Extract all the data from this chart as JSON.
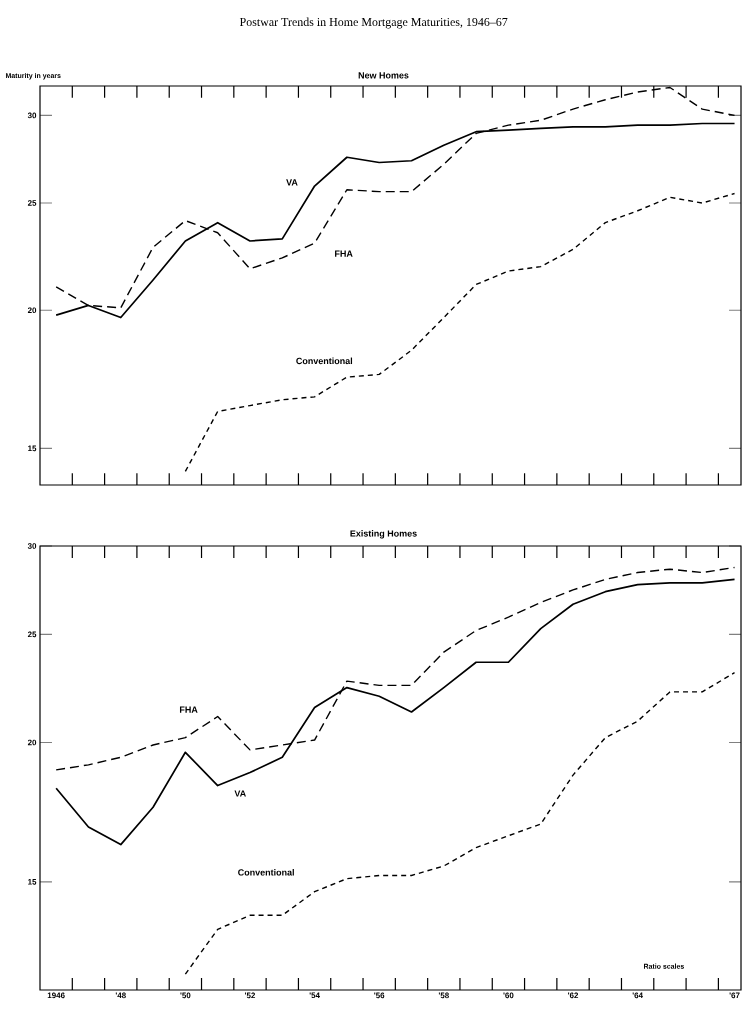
{
  "chart_data": [
    {
      "type": "line",
      "title": "Postwar Trends in Home Mortgage Maturities, 1946–67",
      "subtitle": "New Homes",
      "ylabel": "Maturity in years",
      "log": true,
      "tick_labels": "y",
      "x": [
        1946,
        1947,
        1948,
        1949,
        1950,
        1951,
        1952,
        1953,
        1954,
        1955,
        1956,
        1957,
        1958,
        1959,
        1960,
        1961,
        1962,
        1963,
        1964,
        1965,
        1966,
        1967
      ],
      "xlim": [
        1945.5,
        1967.2
      ],
      "ylim": [
        13.9,
        31.9
      ],
      "xticks": [
        {
          "value": 1946.5,
          "label": null
        },
        {
          "value": 1947.5,
          "label": null
        },
        {
          "value": 1948.5,
          "label": null
        },
        {
          "value": 1949.5,
          "label": null
        },
        {
          "value": 1950.5,
          "label": null
        },
        {
          "value": 1951.5,
          "label": null
        },
        {
          "value": 1952.5,
          "label": null
        },
        {
          "value": 1953.5,
          "label": null
        },
        {
          "value": 1954.5,
          "label": null
        },
        {
          "value": 1955.5,
          "label": null
        },
        {
          "value": 1956.5,
          "label": null
        },
        {
          "value": 1957.5,
          "label": null
        },
        {
          "value": 1958.5,
          "label": null
        },
        {
          "value": 1959.5,
          "label": null
        },
        {
          "value": 1960.5,
          "label": null
        },
        {
          "value": 1961.5,
          "label": null
        },
        {
          "value": 1962.5,
          "label": null
        },
        {
          "value": 1963.5,
          "label": null
        },
        {
          "value": 1964.5,
          "label": null
        },
        {
          "value": 1965.5,
          "label": null
        },
        {
          "value": 1966.5,
          "label": null
        }
      ],
      "yticks": [
        15,
        20,
        25,
        30
      ],
      "series": [
        {
          "name": "VA",
          "color": "#000000",
          "line_style": "solid",
          "values": [
            19.8,
            20.2,
            19.7,
            21.3,
            23.1,
            24.0,
            23.1,
            23.2,
            25.9,
            27.5,
            27.2,
            27.3,
            28.2,
            29.0,
            29.1,
            29.2,
            29.3,
            29.3,
            29.4,
            29.4,
            29.5,
            29.5
          ]
        },
        {
          "name": "FHA",
          "color": "#000000",
          "line_style": "dashed",
          "values": [
            21.0,
            20.2,
            20.1,
            22.8,
            24.1,
            23.5,
            21.8,
            22.3,
            23.0,
            25.7,
            25.6,
            25.6,
            27.1,
            28.9,
            29.4,
            29.7,
            30.4,
            31.0,
            31.5,
            31.8,
            30.4,
            30.0
          ]
        },
        {
          "name": "Conventional",
          "color": "#000000",
          "line_style": "dashed",
          "values": [
            null,
            null,
            null,
            null,
            14.3,
            16.2,
            16.4,
            16.6,
            16.7,
            17.4,
            17.5,
            18.4,
            19.7,
            21.1,
            21.7,
            21.9,
            22.7,
            24.0,
            24.6,
            25.3,
            25.0,
            25.5
          ]
        }
      ]
    },
    {
      "type": "line",
      "title": "Existing Homes",
      "log": true,
      "annotations": [
        "Ratio scales"
      ],
      "x": [
        1946,
        1947,
        1948,
        1949,
        1950,
        1951,
        1952,
        1953,
        1954,
        1955,
        1956,
        1957,
        1958,
        1959,
        1960,
        1961,
        1962,
        1963,
        1964,
        1965,
        1966,
        1967
      ],
      "xlim": [
        1945.5,
        1967.2
      ],
      "ylim": [
        12.0,
        30.0
      ],
      "xticks": [
        {
          "value": 1946,
          "label": "1946"
        },
        {
          "value": 1948,
          "label": "'48"
        },
        {
          "value": 1950,
          "label": "'50"
        },
        {
          "value": 1952,
          "label": "'52"
        },
        {
          "value": 1954,
          "label": "'54"
        },
        {
          "value": 1956,
          "label": "'56"
        },
        {
          "value": 1958,
          "label": "'58"
        },
        {
          "value": 1960,
          "label": "'60"
        },
        {
          "value": 1962,
          "label": "'62"
        },
        {
          "value": 1964,
          "label": "'64"
        },
        {
          "value": 1967,
          "label": "'67"
        },
        {
          "value": 1946.5,
          "label": null
        },
        {
          "value": 1947.5,
          "label": null
        },
        {
          "value": 1948.5,
          "label": null
        },
        {
          "value": 1949.5,
          "label": null
        },
        {
          "value": 1950.5,
          "label": null
        },
        {
          "value": 1951.5,
          "label": null
        },
        {
          "value": 1952.5,
          "label": null
        },
        {
          "value": 1953.5,
          "label": null
        },
        {
          "value": 1954.5,
          "label": null
        },
        {
          "value": 1955.5,
          "label": null
        },
        {
          "value": 1956.5,
          "label": null
        },
        {
          "value": 1957.5,
          "label": null
        },
        {
          "value": 1958.5,
          "label": null
        },
        {
          "value": 1959.5,
          "label": null
        },
        {
          "value": 1960.5,
          "label": null
        },
        {
          "value": 1961.5,
          "label": null
        },
        {
          "value": 1962.5,
          "label": null
        },
        {
          "value": 1963.5,
          "label": null
        },
        {
          "value": 1964.5,
          "label": null
        },
        {
          "value": 1965.5,
          "label": null
        },
        {
          "value": 1966.5,
          "label": null
        }
      ],
      "yticks": [
        15,
        20,
        25,
        30
      ],
      "series": [
        {
          "name": "VA",
          "color": "#000000",
          "line_style": "solid",
          "values": [
            18.2,
            16.8,
            16.2,
            17.5,
            19.6,
            18.3,
            18.8,
            19.4,
            21.5,
            22.4,
            22.0,
            21.3,
            22.4,
            23.6,
            23.6,
            25.3,
            26.6,
            27.3,
            27.7,
            27.8,
            27.8,
            28.0
          ]
        },
        {
          "name": "FHA",
          "color": "#000000",
          "line_style": "dashed",
          "values": [
            18.9,
            19.1,
            19.4,
            19.9,
            20.2,
            21.1,
            19.7,
            19.9,
            20.1,
            22.7,
            22.5,
            22.5,
            24.1,
            25.2,
            25.9,
            26.7,
            27.4,
            28.0,
            28.4,
            28.6,
            28.4,
            28.7
          ]
        },
        {
          "name": "Conventional",
          "color": "#000000",
          "line_style": "dashed",
          "values": [
            null,
            null,
            null,
            null,
            12.4,
            13.6,
            14.0,
            14.0,
            14.7,
            15.1,
            15.2,
            15.2,
            15.5,
            16.1,
            16.5,
            16.9,
            18.7,
            20.2,
            20.9,
            22.2,
            22.2,
            23.1
          ]
        }
      ]
    }
  ]
}
